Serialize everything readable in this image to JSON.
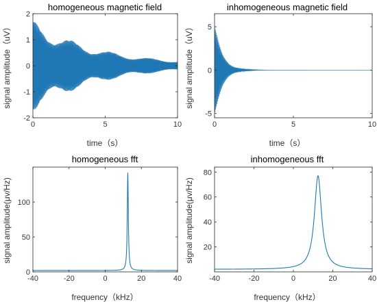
{
  "chart_data": [
    {
      "type": "line",
      "title": "homogeneous magnetic field",
      "xlabel": "time（s）",
      "ylabel": "signal amplitude（uV）",
      "xlim": [
        0,
        10
      ],
      "ylim": [
        -2,
        2
      ],
      "xticks": [
        0,
        5,
        10
      ],
      "yticks": [
        -2,
        -1,
        0,
        1,
        2
      ],
      "series_color": "#1f77b4",
      "signal": {
        "kind": "decaying_oscillation",
        "amplitude_uV": 1.75,
        "decay_time_s": 4.5,
        "approx_cycles": 140
      }
    },
    {
      "type": "line",
      "title": "inhomogeneous magnetic field",
      "xlabel": "time（s）",
      "ylabel": "signal amplitude（uV）",
      "xlim": [
        0,
        10
      ],
      "ylim": [
        -5.5,
        6.5
      ],
      "xticks": [
        0,
        5,
        10
      ],
      "yticks": [
        -5,
        0,
        5
      ],
      "series_color": "#1f77b4",
      "signal": {
        "kind": "decaying_oscillation",
        "amplitude_uV": 5.3,
        "decay_time_s": 0.55,
        "approx_cycles": 140
      }
    },
    {
      "type": "line",
      "title": "homogeneous fft",
      "xlabel": "frequency（kHz）",
      "ylabel": "signal amplitude(μv/Hz)",
      "xlim": [
        -40,
        40
      ],
      "ylim": [
        0,
        150
      ],
      "xticks": [
        -40,
        -20,
        0,
        20,
        40
      ],
      "yticks": [
        0,
        50,
        100
      ],
      "series_color": "#1f77b4",
      "peak": {
        "center_kHz": 12.5,
        "height": 142,
        "baseline": 2,
        "half_width_kHz": 0.35
      }
    },
    {
      "type": "line",
      "title": "inhomogeneous  fft",
      "xlabel": "frequency（kHz）",
      "ylabel": "signal amplitude(μv/Hz)",
      "xlim": [
        -40,
        40
      ],
      "ylim": [
        0,
        84
      ],
      "xticks": [
        -40,
        -20,
        0,
        20,
        40
      ],
      "yticks": [
        20,
        40,
        60,
        80
      ],
      "series_color": "#1f77b4",
      "peak": {
        "center_kHz": 12.5,
        "height": 77,
        "baseline": 2,
        "half_width_kHz": 2.2
      }
    }
  ]
}
